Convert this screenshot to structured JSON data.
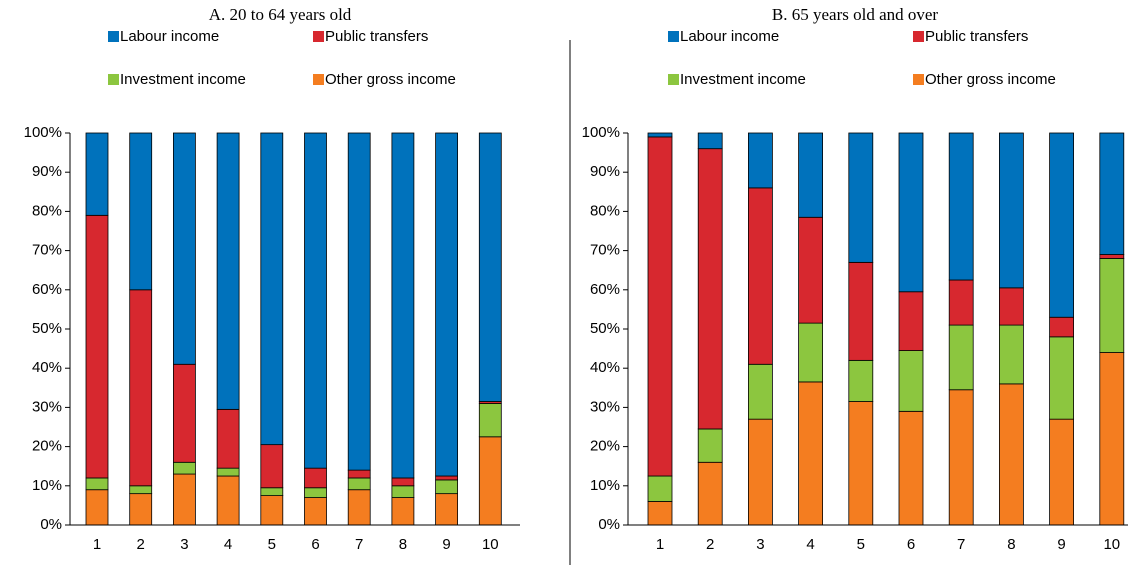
{
  "chart_data": [
    {
      "type": "bar",
      "stacked": true,
      "title": "A. 20 to 64 years old",
      "categories": [
        "1",
        "2",
        "3",
        "4",
        "5",
        "6",
        "7",
        "8",
        "9",
        "10"
      ],
      "series": [
        {
          "name": "Labour income",
          "color": "#0072bc",
          "values": [
            21,
            40,
            59,
            70.5,
            79.5,
            85.5,
            86,
            88,
            87.5,
            68.5
          ]
        },
        {
          "name": "Public transfers",
          "color": "#d7282f",
          "values": [
            67,
            50,
            25,
            15,
            11,
            5,
            2,
            2,
            1,
            0.5
          ]
        },
        {
          "name": "Investment income",
          "color": "#8cc63f",
          "values": [
            3,
            2,
            3,
            2,
            2,
            2.5,
            3,
            3,
            3.5,
            8.5
          ]
        },
        {
          "name": "Other gross income",
          "color": "#f47d20",
          "values": [
            9,
            8,
            13,
            12.5,
            7.5,
            7,
            9,
            7,
            8,
            22.5
          ]
        }
      ],
      "ylim": [
        0,
        100
      ],
      "yticks": [
        {
          "value": 0,
          "label": "0%"
        },
        {
          "value": 10,
          "label": "10%"
        },
        {
          "value": 20,
          "label": "20%"
        },
        {
          "value": 30,
          "label": "30%"
        },
        {
          "value": 40,
          "label": "40%"
        },
        {
          "value": 50,
          "label": "50%"
        },
        {
          "value": 60,
          "label": "60%"
        },
        {
          "value": 70,
          "label": "70%"
        },
        {
          "value": 80,
          "label": "80%"
        },
        {
          "value": 90,
          "label": "90%"
        },
        {
          "value": 100,
          "label": "100%"
        }
      ]
    },
    {
      "type": "bar",
      "stacked": true,
      "title": "B. 65 years old and over",
      "categories": [
        "1",
        "2",
        "3",
        "4",
        "5",
        "6",
        "7",
        "8",
        "9",
        "10"
      ],
      "series": [
        {
          "name": "Labour income",
          "color": "#0072bc",
          "values": [
            1,
            4,
            14,
            21.5,
            33,
            40.5,
            37.5,
            39.5,
            47,
            31
          ]
        },
        {
          "name": "Public transfers",
          "color": "#d7282f",
          "values": [
            86.5,
            71.5,
            45,
            27,
            25,
            15,
            11.5,
            9.5,
            5,
            1
          ]
        },
        {
          "name": "Investment income",
          "color": "#8cc63f",
          "values": [
            6.5,
            8.5,
            14,
            15,
            10.5,
            15.5,
            16.5,
            15,
            21,
            24
          ]
        },
        {
          "name": "Other gross income",
          "color": "#f47d20",
          "values": [
            6,
            16,
            27,
            36.5,
            31.5,
            29,
            34.5,
            36,
            27,
            44
          ]
        }
      ],
      "ylim": [
        0,
        100
      ],
      "yticks": [
        {
          "value": 0,
          "label": "0%"
        },
        {
          "value": 10,
          "label": "10%"
        },
        {
          "value": 20,
          "label": "20%"
        },
        {
          "value": 30,
          "label": "30%"
        },
        {
          "value": 40,
          "label": "40%"
        },
        {
          "value": 50,
          "label": "50%"
        },
        {
          "value": 60,
          "label": "60%"
        },
        {
          "value": 70,
          "label": "70%"
        },
        {
          "value": 80,
          "label": "80%"
        },
        {
          "value": 90,
          "label": "90%"
        },
        {
          "value": 100,
          "label": "100%"
        }
      ]
    }
  ]
}
